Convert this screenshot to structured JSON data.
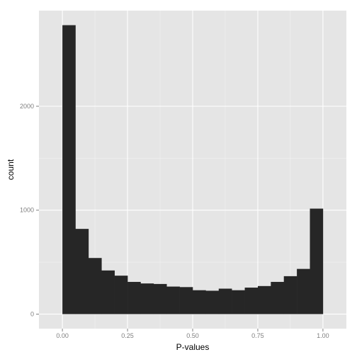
{
  "chart_data": {
    "type": "bar",
    "subtype": "histogram",
    "xlabel": "P-values",
    "ylabel": "count",
    "xlim": [
      -0.09,
      1.09
    ],
    "ylim": [
      -140,
      2920
    ],
    "x_ticks": [
      0.0,
      0.25,
      0.5,
      0.75,
      1.0
    ],
    "x_tick_labels": [
      "0.00",
      "0.25",
      "0.50",
      "0.75",
      "1.00"
    ],
    "y_ticks": [
      0,
      1000,
      2000
    ],
    "y_tick_labels": [
      "0",
      "1000",
      "2000"
    ],
    "bin_width": 0.05,
    "bins": [
      {
        "start": 0.0,
        "end": 0.05,
        "count": 2780
      },
      {
        "start": 0.05,
        "end": 0.1,
        "count": 820
      },
      {
        "start": 0.1,
        "end": 0.15,
        "count": 540
      },
      {
        "start": 0.15,
        "end": 0.2,
        "count": 420
      },
      {
        "start": 0.2,
        "end": 0.25,
        "count": 370
      },
      {
        "start": 0.25,
        "end": 0.3,
        "count": 310
      },
      {
        "start": 0.3,
        "end": 0.35,
        "count": 295
      },
      {
        "start": 0.35,
        "end": 0.4,
        "count": 290
      },
      {
        "start": 0.4,
        "end": 0.45,
        "count": 265
      },
      {
        "start": 0.45,
        "end": 0.5,
        "count": 260
      },
      {
        "start": 0.5,
        "end": 0.55,
        "count": 230
      },
      {
        "start": 0.55,
        "end": 0.6,
        "count": 225
      },
      {
        "start": 0.6,
        "end": 0.65,
        "count": 245
      },
      {
        "start": 0.65,
        "end": 0.7,
        "count": 230
      },
      {
        "start": 0.7,
        "end": 0.75,
        "count": 255
      },
      {
        "start": 0.75,
        "end": 0.8,
        "count": 270
      },
      {
        "start": 0.8,
        "end": 0.85,
        "count": 310
      },
      {
        "start": 0.85,
        "end": 0.9,
        "count": 365
      },
      {
        "start": 0.9,
        "end": 0.95,
        "count": 435
      },
      {
        "start": 0.95,
        "end": 1.0,
        "count": 1015
      }
    ],
    "grid": true,
    "colors": {
      "panel_background": "#e5e5e5",
      "grid_major": "#ffffff",
      "grid_minor": "#f2f2f2",
      "bar_fill": "#262626",
      "tick_label": "#7f7f7f",
      "tick_mark": "#7f7f7f",
      "axis_title": "#000000"
    }
  }
}
